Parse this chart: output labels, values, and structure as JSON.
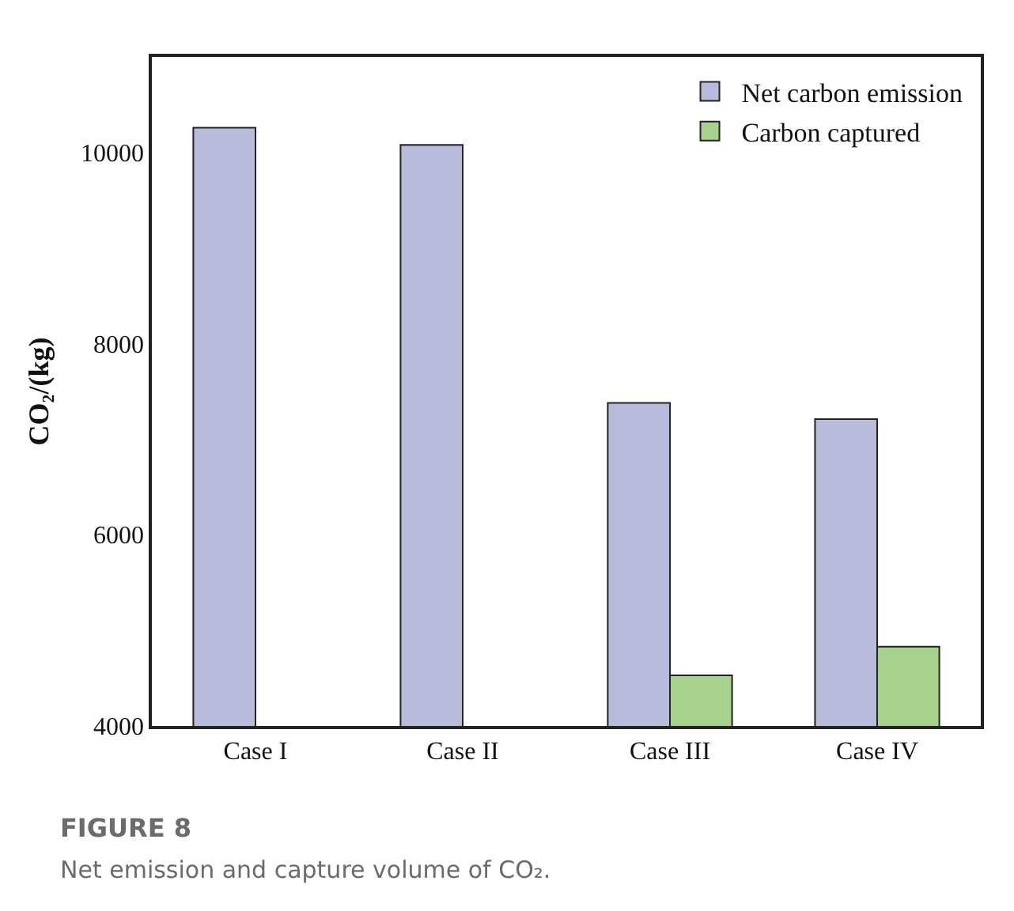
{
  "chart_data": {
    "type": "bar",
    "title": "FIGURE 8",
    "subtitle": "Net emission and capture volume of CO₂.",
    "ylabel": "CO₂/(kg)",
    "categories": [
      "Case I",
      "Case II",
      "Case III",
      "Case IV"
    ],
    "series": [
      {
        "name": "Net carbon emission",
        "color": "#b9bbda",
        "values": [
          10260,
          10080,
          7380,
          7210
        ]
      },
      {
        "name": "Carbon captured",
        "color": "#a9d18e",
        "values": [
          null,
          null,
          4530,
          4830
        ]
      }
    ],
    "ylim": [
      4000,
      11000
    ],
    "yticks": [
      4000,
      6000,
      8000,
      10000
    ],
    "legend": "top right"
  }
}
